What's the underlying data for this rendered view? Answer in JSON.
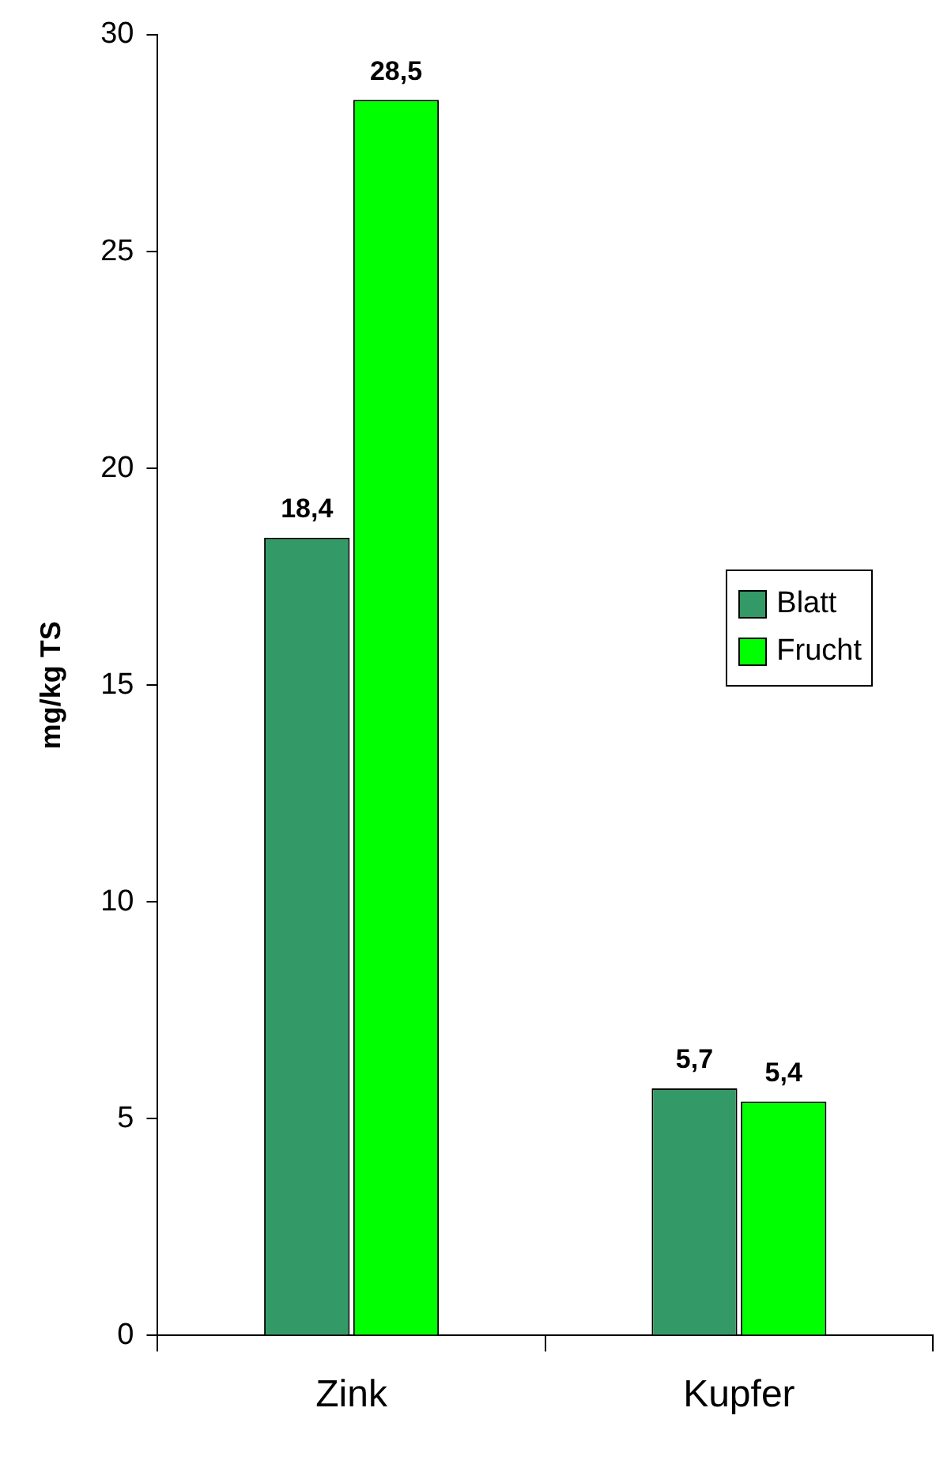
{
  "chart_data": {
    "type": "bar",
    "ylabel": "mg/kg TS",
    "categories": [
      "Zink",
      "Kupfer"
    ],
    "series": [
      {
        "name": "Blatt",
        "color": "#339966",
        "values": [
          18.4,
          5.7
        ],
        "value_labels": [
          "18,4",
          "5,7"
        ]
      },
      {
        "name": "Frucht",
        "color": "#00ff00",
        "values": [
          28.5,
          5.4
        ],
        "value_labels": [
          "28,5",
          "5,4"
        ]
      }
    ],
    "ylim": [
      0,
      30
    ],
    "yticks": [
      0,
      5,
      10,
      15,
      20,
      25,
      30
    ],
    "grid": false,
    "legend": "right"
  }
}
